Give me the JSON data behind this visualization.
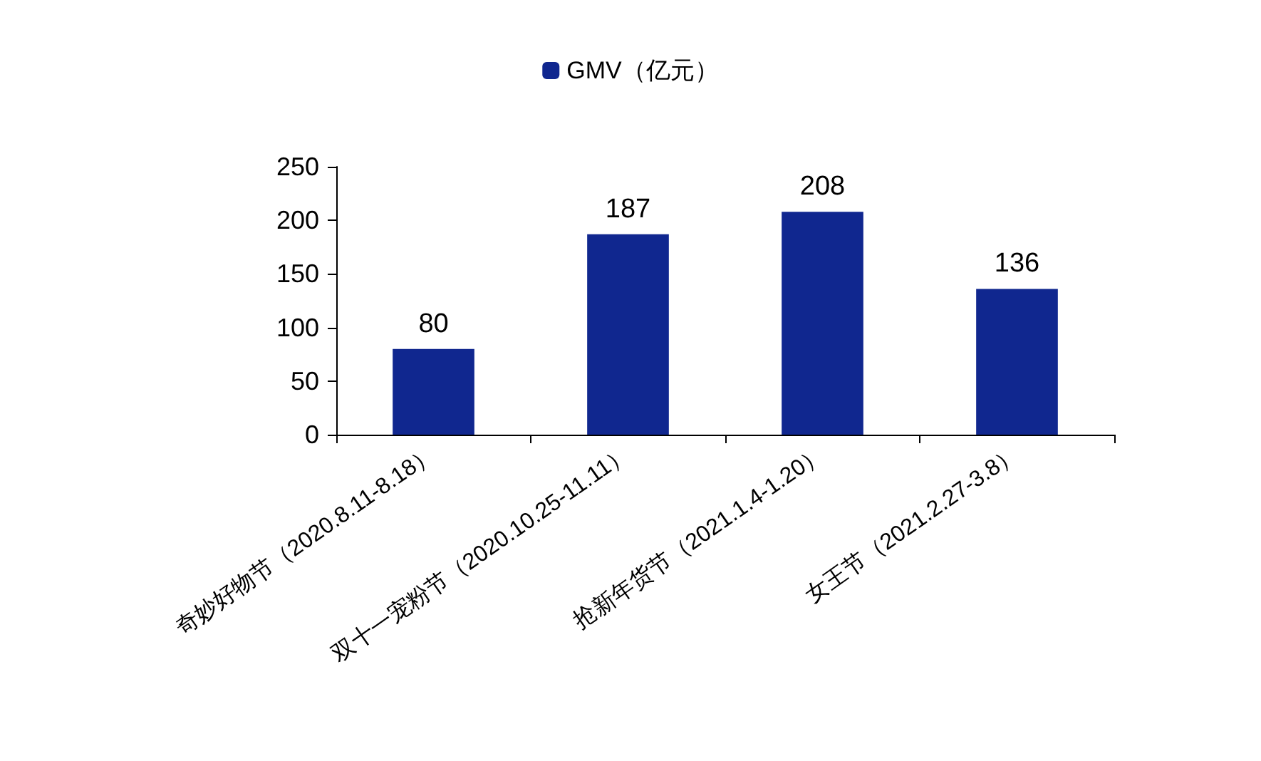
{
  "chart_data": {
    "type": "bar",
    "categories": [
      "奇妙好物节（2020.8.11-8.18）",
      "双十一宠粉节（2020.10.25-11.11）",
      "抢新年货节（2021.1.4-1.20）",
      "女王节（2021.2.27-3.8）"
    ],
    "series": [
      {
        "name": "GMV（亿元）",
        "color": "#10278f",
        "values": [
          80,
          187,
          208,
          136
        ]
      }
    ],
    "ylim": [
      0,
      250
    ],
    "yticks": [
      0,
      50,
      100,
      150,
      200,
      250
    ],
    "grid": false,
    "legend": "top",
    "data_labels": true
  }
}
